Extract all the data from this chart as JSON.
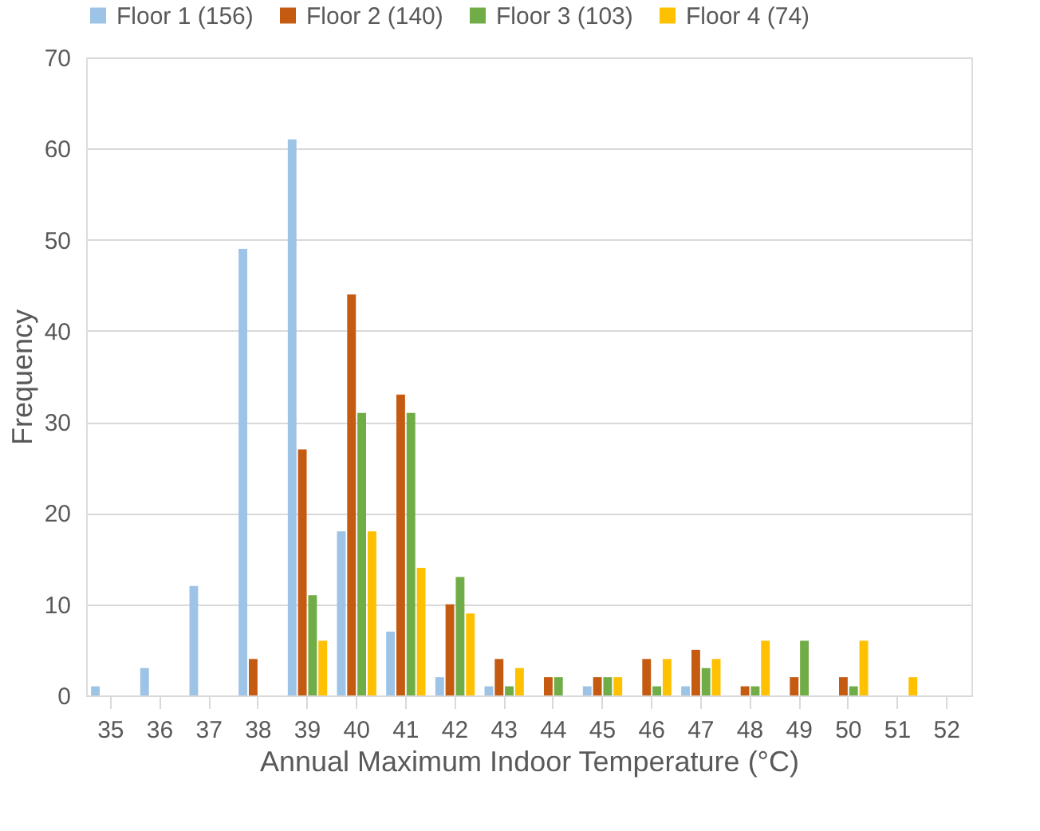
{
  "chart_data": {
    "type": "bar",
    "xlabel": "Annual Maximum Indoor Temperature (°C)",
    "ylabel": "Frequency",
    "categories": [
      "35",
      "36",
      "37",
      "38",
      "39",
      "40",
      "41",
      "42",
      "43",
      "44",
      "45",
      "46",
      "47",
      "48",
      "49",
      "50",
      "51",
      "52"
    ],
    "series": [
      {
        "name": "Floor 1 (156)",
        "color": "#9dc3e6",
        "values": [
          1,
          3,
          12,
          49,
          61,
          18,
          7,
          2,
          1,
          null,
          1,
          null,
          1,
          null,
          null,
          null,
          null,
          null
        ]
      },
      {
        "name": "Floor 2 (140)",
        "color": "#c55a11",
        "values": [
          null,
          null,
          null,
          4,
          27,
          44,
          33,
          10,
          4,
          2,
          2,
          4,
          5,
          1,
          2,
          2,
          null,
          null
        ]
      },
      {
        "name": "Floor 3 (103)",
        "color": "#70ad47",
        "values": [
          null,
          null,
          null,
          null,
          11,
          31,
          31,
          13,
          1,
          2,
          2,
          1,
          3,
          1,
          6,
          1,
          null,
          null
        ]
      },
      {
        "name": "Floor 4 (74)",
        "color": "#ffc000",
        "values": [
          null,
          null,
          null,
          null,
          6,
          18,
          14,
          9,
          3,
          null,
          2,
          4,
          4,
          6,
          null,
          6,
          2,
          null
        ]
      }
    ],
    "ylim": [
      0,
      70
    ],
    "yticks": [
      0,
      10,
      20,
      30,
      40,
      50,
      60,
      70
    ],
    "grid": "y",
    "legend": "top"
  }
}
